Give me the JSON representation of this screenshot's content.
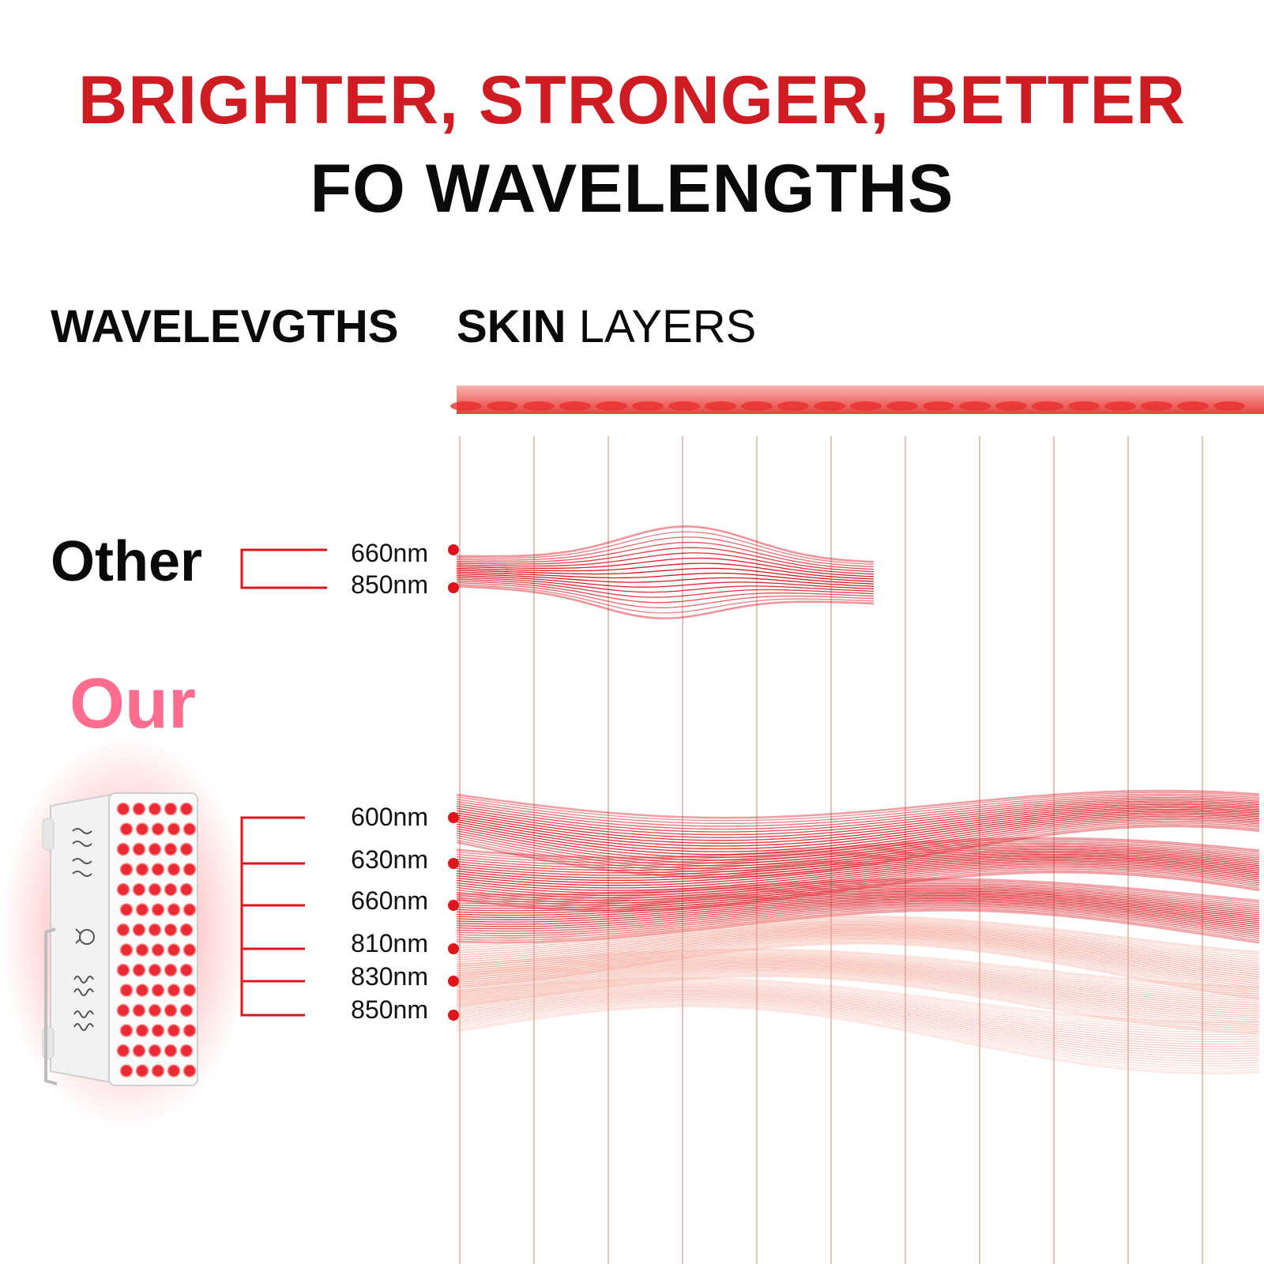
{
  "headline": {
    "line1": "BRIGHTER, STRONGER, BETTER",
    "line2": "FO WAVELENGTHS"
  },
  "columns": {
    "wavelengths": "WAVELEVGTHS",
    "skin_bold": "SKIN",
    "skin_light": " LAYERS"
  },
  "groups": {
    "other": {
      "label": "Other",
      "wavelengths": [
        "660nm",
        "850nm"
      ]
    },
    "our": {
      "label": "Our",
      "wavelengths": [
        "600nm",
        "630nm",
        "660nm",
        "810nm",
        "830nm",
        "850nm"
      ]
    }
  },
  "colors": {
    "headline_red": "#cf1b22",
    "our_pink": "#ff6d8e",
    "wave_red": "#d9141c",
    "wave_light": "#f59a8a",
    "grid_line": "#e8c2b8"
  }
}
